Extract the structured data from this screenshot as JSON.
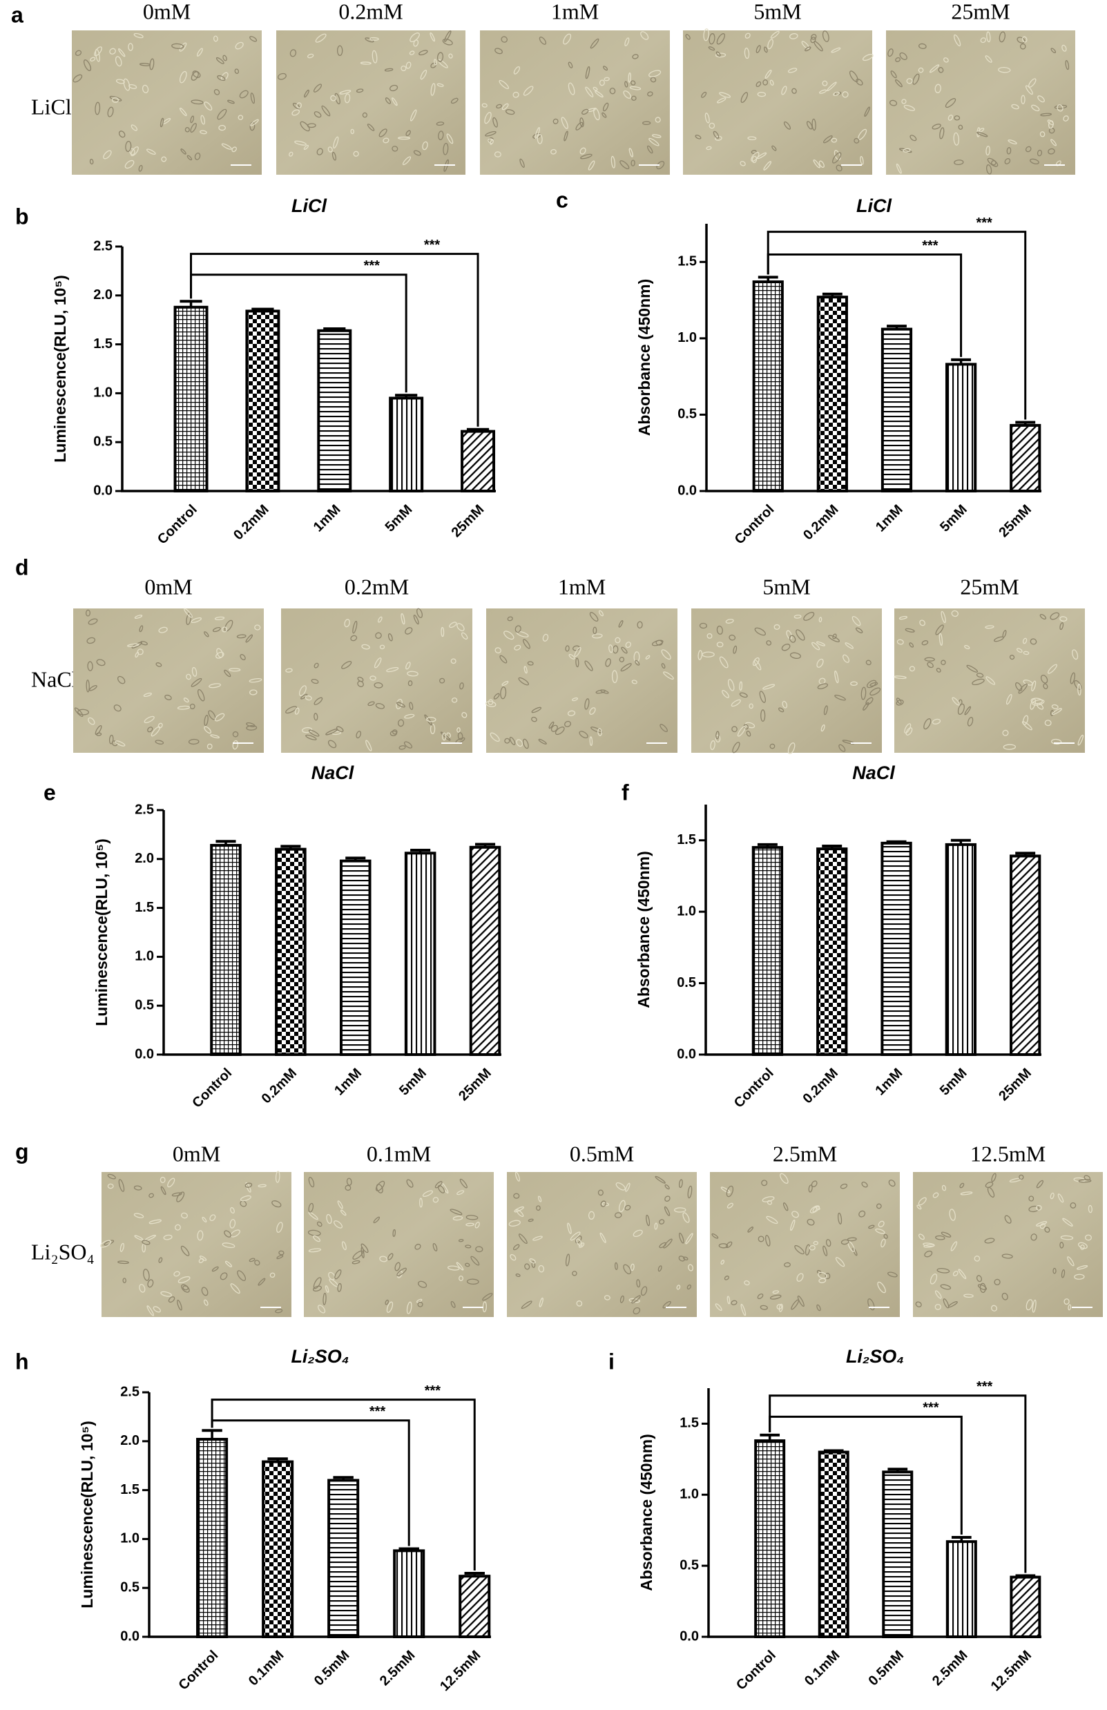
{
  "micrographs": [
    {
      "label": "a",
      "row_label": "LiCl",
      "columns": [
        "0mM",
        "0.2mM",
        "1mM",
        "5mM",
        "25mM"
      ]
    },
    {
      "label": "d",
      "row_label": "NaCl",
      "columns": [
        "0mM",
        "0.2mM",
        "1mM",
        "5mM",
        "25mM"
      ]
    },
    {
      "label": "g",
      "row_label": "Li₂SO₄",
      "columns": [
        "0mM",
        "0.1mM",
        "0.5mM",
        "2.5mM",
        "12.5mM"
      ]
    }
  ],
  "chart_data": [
    {
      "type": "bar",
      "label": "b",
      "title": "LiCl",
      "y_label": "Luminescence(RLU, 10⁵)",
      "categories": [
        "Control",
        "0.2mM",
        "1mM",
        "5mM",
        "25mM"
      ],
      "values": [
        1.88,
        1.84,
        1.64,
        0.95,
        0.61
      ],
      "errors": [
        0.06,
        0.02,
        0.02,
        0.03,
        0.02
      ],
      "ylim": [
        0,
        2.5
      ],
      "yticks": [
        {
          "value": 0,
          "label": "0.0"
        },
        0.5,
        {
          "value": 1,
          "label": "1.0"
        },
        1.5,
        {
          "value": 2,
          "label": "2.0"
        },
        2.5
      ],
      "significance": [
        {
          "from": "Control",
          "to": "5mM",
          "label": "***"
        },
        {
          "from": "Control",
          "to": "25mM",
          "label": "***"
        }
      ]
    },
    {
      "type": "bar",
      "label": "c",
      "title": "LiCl",
      "y_label": "Absorbance (450nm)",
      "categories": [
        "Control",
        "0.2mM",
        "1mM",
        "5mM",
        "25mM"
      ],
      "values": [
        1.37,
        1.27,
        1.06,
        0.83,
        0.43
      ],
      "errors": [
        0.03,
        0.02,
        0.02,
        0.03,
        0.02
      ],
      "ylim": [
        0,
        1.75
      ],
      "yticks": [
        {
          "value": 0,
          "label": "0.0"
        },
        0.5,
        {
          "value": 1,
          "label": "1.0"
        },
        1.5
      ],
      "significance": [
        {
          "from": "Control",
          "to": "5mM",
          "label": "***"
        },
        {
          "from": "Control",
          "to": "25mM",
          "label": "***"
        }
      ]
    },
    {
      "type": "bar",
      "label": "e",
      "title": "NaCl",
      "y_label": "Luminescence(RLU, 10⁵)",
      "categories": [
        "Control",
        "0.2mM",
        "1mM",
        "5mM",
        "25mM"
      ],
      "values": [
        2.14,
        2.1,
        1.98,
        2.06,
        2.12
      ],
      "errors": [
        0.04,
        0.03,
        0.03,
        0.03,
        0.03
      ],
      "ylim": [
        0,
        2.5
      ],
      "yticks": [
        {
          "value": 0,
          "label": "0.0"
        },
        0.5,
        {
          "value": 1,
          "label": "1.0"
        },
        1.5,
        {
          "value": 2,
          "label": "2.0"
        },
        2.5
      ]
    },
    {
      "type": "bar",
      "label": "f",
      "title": "NaCl",
      "y_label": "Absorbance (450nm)",
      "categories": [
        "Control",
        "0.2mM",
        "1mM",
        "5mM",
        "25mM"
      ],
      "values": [
        1.45,
        1.44,
        1.48,
        1.47,
        1.39
      ],
      "errors": [
        0.02,
        0.02,
        0.01,
        0.03,
        0.02
      ],
      "ylim": [
        0,
        1.75
      ],
      "yticks": [
        {
          "value": 0,
          "label": "0.0"
        },
        0.5,
        {
          "value": 1,
          "label": "1.0"
        },
        1.5
      ]
    },
    {
      "type": "bar",
      "label": "h",
      "title": "Li₂SO₄",
      "y_label": "Luminescence(RLU, 10⁵)",
      "categories": [
        "Control",
        "0.1mM",
        "0.5mM",
        "2.5mM",
        "12.5mM"
      ],
      "values": [
        2.02,
        1.79,
        1.6,
        0.88,
        0.62
      ],
      "errors": [
        0.09,
        0.03,
        0.03,
        0.02,
        0.03
      ],
      "ylim": [
        0,
        2.5
      ],
      "yticks": [
        {
          "value": 0,
          "label": "0.0"
        },
        0.5,
        {
          "value": 1,
          "label": "1.0"
        },
        1.5,
        {
          "value": 2,
          "label": "2.0"
        },
        2.5
      ],
      "significance": [
        {
          "from": "Control",
          "to": "2.5mM",
          "label": "***"
        },
        {
          "from": "Control",
          "to": "12.5mM",
          "label": "***"
        }
      ]
    },
    {
      "type": "bar",
      "label": "i",
      "title": "Li₂SO₄",
      "y_label": "Absorbance (450nm)",
      "categories": [
        "Control",
        "0.1mM",
        "0.5mM",
        "2.5mM",
        "12.5mM"
      ],
      "values": [
        1.38,
        1.3,
        1.16,
        0.67,
        0.42
      ],
      "errors": [
        0.04,
        0.01,
        0.02,
        0.03,
        0.01
      ],
      "ylim": [
        0,
        1.75
      ],
      "yticks": [
        {
          "value": 0,
          "label": "0.0"
        },
        0.5,
        {
          "value": 1,
          "label": "1.0"
        },
        1.5
      ],
      "significance": [
        {
          "from": "Control",
          "to": "2.5mM",
          "label": "***"
        },
        {
          "from": "Control",
          "to": "12.5mM",
          "label": "***"
        }
      ]
    }
  ]
}
